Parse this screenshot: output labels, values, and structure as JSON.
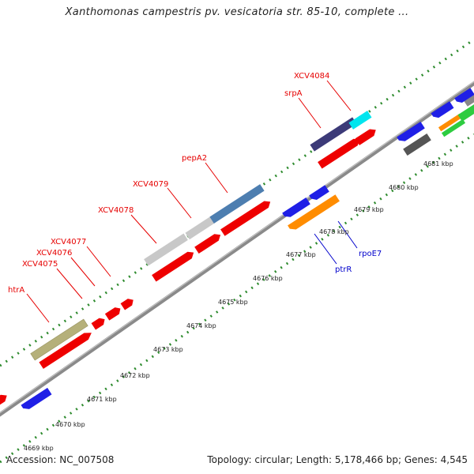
{
  "title": "Xanthomonas campestris pv. vesicatoria str. 85-10, complete ...",
  "footer": {
    "accession": "Accession: NC_007508",
    "summary": "Topology: circular; Length: 5,178,466 bp; Genes: 4,545"
  },
  "colors": {
    "background": "#ffffff",
    "backbone": "#8a8a8a",
    "tick": "#2e8b2e",
    "label_red": "#e60000",
    "label_blue": "#0000cc"
  },
  "kbp_labels": [
    "4669 kbp",
    "4670 kbp",
    "4671 kbp",
    "4672 kbp",
    "4673 kbp",
    "4674 kbp",
    "4675 kbp",
    "4676 kbp",
    "4677 kbp",
    "4678 kbp",
    "4679 kbp",
    "4680 kbp",
    "4681 kbp"
  ],
  "gene_labels": [
    {
      "text": "htrA",
      "color": "#e60000"
    },
    {
      "text": "XCV4075",
      "color": "#e60000"
    },
    {
      "text": "XCV4076",
      "color": "#e60000"
    },
    {
      "text": "XCV4077",
      "color": "#e60000"
    },
    {
      "text": "XCV4078",
      "color": "#e60000"
    },
    {
      "text": "XCV4079",
      "color": "#e60000"
    },
    {
      "text": "pepA2",
      "color": "#e60000"
    },
    {
      "text": "srpA",
      "color": "#e60000"
    },
    {
      "text": "XCV4084",
      "color": "#e60000"
    },
    {
      "text": "ptrR",
      "color": "#0000cc"
    },
    {
      "text": "rpoE7",
      "color": "#0000cc"
    }
  ]
}
